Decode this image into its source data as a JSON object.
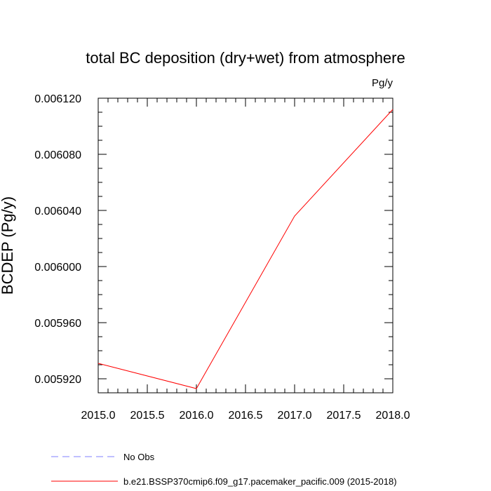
{
  "chart_data": {
    "type": "line",
    "title": "total BC deposition (dry+wet) from atmosphere",
    "units_label": "Pg/y",
    "ylabel": "BCDEP  (Pg/y)",
    "xlabel": "",
    "xlim": [
      2015.0,
      2018.0
    ],
    "ylim": [
      0.00591,
      0.00612
    ],
    "x_ticks": [
      "2015.0",
      "2015.5",
      "2016.0",
      "2016.5",
      "2017.0",
      "2017.5",
      "2018.0"
    ],
    "x_tick_values": [
      2015.0,
      2015.5,
      2016.0,
      2016.5,
      2017.0,
      2017.5,
      2018.0
    ],
    "y_ticks": [
      "0.005920",
      "0.005960",
      "0.006000",
      "0.006040",
      "0.006080",
      "0.006120"
    ],
    "y_tick_values": [
      0.00592,
      0.00596,
      0.006,
      0.00604,
      0.00608,
      0.00612
    ],
    "grid": false,
    "legend_position": "bottom-left, below plot",
    "series": [
      {
        "name": "No Obs",
        "color": "#8080ff",
        "dash": "dashed",
        "x": [],
        "y": []
      },
      {
        "name": "b.e21.BSSP370cmip6.f09_g17.pacemaker_pacific.009 (2015-2018)",
        "color": "#ff0000",
        "dash": "solid",
        "x": [
          2015.0,
          2016.0,
          2017.0,
          2018.0
        ],
        "y": [
          0.005931,
          0.005913,
          0.006036,
          0.006112
        ]
      }
    ]
  }
}
